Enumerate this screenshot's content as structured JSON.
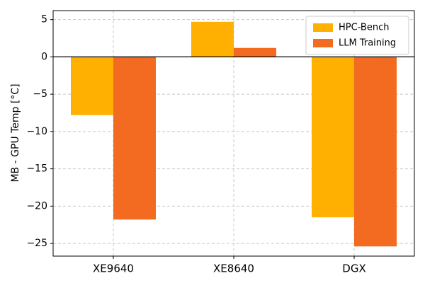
{
  "chart_data": {
    "type": "bar",
    "ylabel": "MB - GPU Temp [°C]",
    "categories": [
      "XE9640",
      "XE8640",
      "DGX"
    ],
    "series": [
      {
        "name": "HPC-Bench",
        "color": "#ffb000",
        "values": [
          -7.8,
          4.7,
          -21.5
        ]
      },
      {
        "name": "LLM Training",
        "color": "#f26b21",
        "values": [
          -21.8,
          1.2,
          -25.4
        ]
      }
    ],
    "ylim": [
      -26.7,
      6.2
    ],
    "yticks": [
      5,
      0,
      {
        "value": -5,
        "label": "−5"
      },
      {
        "value": -10,
        "label": "−10"
      },
      {
        "value": -15,
        "label": "−15"
      },
      {
        "value": -20,
        "label": "−20"
      },
      {
        "value": -25,
        "label": "−25"
      }
    ],
    "grid": true,
    "legend": "upper right"
  }
}
